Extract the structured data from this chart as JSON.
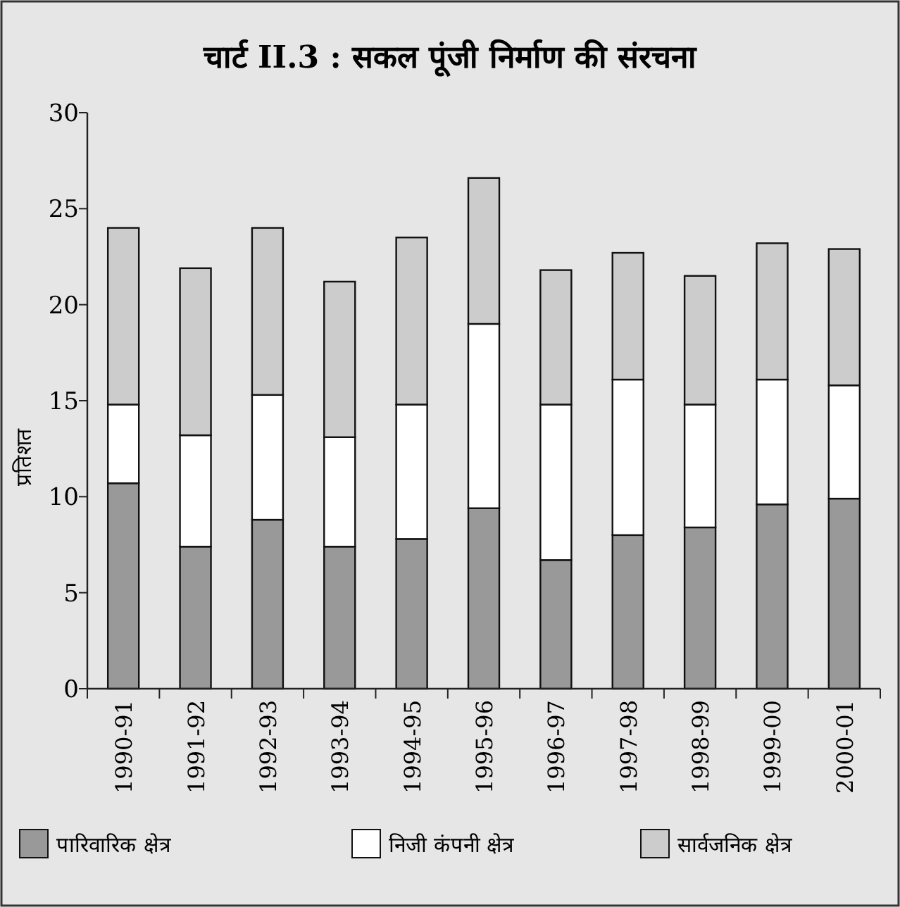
{
  "chart_data": {
    "type": "bar",
    "stacked": true,
    "title": "चार्ट II.3 : सकल पूंजी निर्माण की संरचना",
    "ylabel": "प्रतिशत",
    "categories": [
      "1990-91",
      "1991-92",
      "1992-93",
      "1993-94",
      "1994-95",
      "1995-96",
      "1996-97",
      "1997-98",
      "1998-99",
      "1999-00",
      "2000-01"
    ],
    "series": [
      {
        "name": "पारिवारिक क्षेत्र",
        "color": "#999999",
        "values": [
          10.7,
          7.4,
          8.8,
          7.4,
          7.8,
          9.4,
          6.7,
          8.0,
          8.4,
          9.6,
          9.9
        ]
      },
      {
        "name": "निजी कंपनी क्षेत्र",
        "color": "#ffffff",
        "values": [
          4.1,
          5.8,
          6.5,
          5.7,
          7.0,
          9.6,
          8.1,
          8.1,
          6.4,
          6.5,
          5.9
        ]
      },
      {
        "name": "सार्वजनिक क्षेत्र",
        "color": "#cccccc",
        "values": [
          9.2,
          8.7,
          8.7,
          8.1,
          8.7,
          7.6,
          7.0,
          6.6,
          6.7,
          7.1,
          7.1
        ]
      }
    ],
    "ylim": [
      0,
      30
    ],
    "yticks": [
      0,
      5,
      10,
      15,
      20,
      25,
      30
    ],
    "grid": false,
    "legend": "bottom"
  }
}
